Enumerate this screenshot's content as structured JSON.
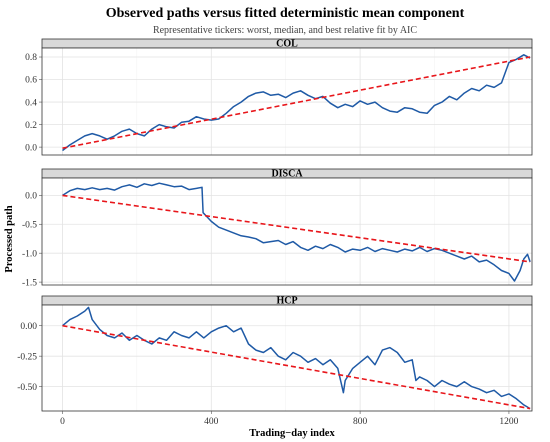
{
  "chart_data": {
    "type": "line",
    "title": "Observed paths versus fitted deterministic mean component",
    "subtitle": "Representative tickers: worst, median, and best relative fit by AIC",
    "xlabel": "Trading−day index",
    "ylabel": "Processed path",
    "xlim": [
      -55,
      1262
    ],
    "x_ticks": [
      0,
      400,
      800,
      1200
    ],
    "grid": true,
    "legend": "none",
    "colors": {
      "observed": "#1f5aa6",
      "fitted": "#e8161b"
    },
    "panels": [
      {
        "strip": "COL",
        "ylim": [
          -0.07,
          0.88
        ],
        "y_ticks": [
          0.0,
          0.2,
          0.4,
          0.6,
          0.8
        ],
        "y_tick_labels": [
          "0.0",
          "0.2",
          "0.4",
          "0.6",
          "0.8"
        ],
        "fitted": {
          "x": [
            0,
            1257
          ],
          "y": [
            -0.01,
            0.8
          ]
        },
        "observed": {
          "x": [
            0,
            20,
            40,
            60,
            80,
            100,
            120,
            140,
            160,
            180,
            200,
            220,
            240,
            260,
            280,
            300,
            320,
            340,
            360,
            380,
            400,
            420,
            440,
            460,
            480,
            500,
            520,
            540,
            560,
            580,
            600,
            620,
            640,
            660,
            680,
            700,
            720,
            740,
            760,
            780,
            800,
            820,
            840,
            860,
            880,
            900,
            920,
            940,
            960,
            980,
            1000,
            1020,
            1040,
            1060,
            1080,
            1100,
            1120,
            1140,
            1160,
            1180,
            1200,
            1220,
            1240,
            1257
          ],
          "y": [
            -0.03,
            0.02,
            0.06,
            0.1,
            0.12,
            0.1,
            0.07,
            0.1,
            0.14,
            0.16,
            0.12,
            0.1,
            0.16,
            0.2,
            0.18,
            0.17,
            0.22,
            0.23,
            0.27,
            0.25,
            0.24,
            0.25,
            0.3,
            0.36,
            0.4,
            0.45,
            0.48,
            0.49,
            0.46,
            0.47,
            0.44,
            0.48,
            0.5,
            0.46,
            0.43,
            0.45,
            0.39,
            0.35,
            0.38,
            0.36,
            0.41,
            0.38,
            0.4,
            0.35,
            0.32,
            0.31,
            0.35,
            0.34,
            0.31,
            0.3,
            0.37,
            0.4,
            0.45,
            0.42,
            0.48,
            0.52,
            0.5,
            0.55,
            0.53,
            0.57,
            0.75,
            0.78,
            0.82,
            0.79
          ]
        }
      },
      {
        "strip": "DISCA",
        "ylim": [
          -1.55,
          0.3
        ],
        "y_ticks": [
          0.0,
          -0.5,
          -1.0,
          -1.5
        ],
        "y_tick_labels": [
          "0.0",
          "-0.5",
          "-1.0",
          "-1.5"
        ],
        "fitted": {
          "x": [
            0,
            1257
          ],
          "y": [
            0.0,
            -1.15
          ]
        },
        "observed": {
          "x": [
            0,
            20,
            40,
            60,
            80,
            100,
            120,
            140,
            160,
            180,
            200,
            220,
            240,
            260,
            280,
            300,
            320,
            340,
            360,
            375,
            378,
            400,
            420,
            440,
            460,
            480,
            500,
            520,
            540,
            560,
            580,
            600,
            620,
            640,
            660,
            680,
            700,
            720,
            740,
            760,
            780,
            800,
            820,
            840,
            860,
            880,
            900,
            920,
            940,
            960,
            980,
            1000,
            1020,
            1040,
            1060,
            1080,
            1100,
            1120,
            1140,
            1160,
            1180,
            1200,
            1215,
            1230,
            1240,
            1250,
            1257
          ],
          "y": [
            0.0,
            0.08,
            0.12,
            0.1,
            0.13,
            0.1,
            0.12,
            0.09,
            0.15,
            0.18,
            0.14,
            0.2,
            0.17,
            0.21,
            0.18,
            0.15,
            0.16,
            0.1,
            0.12,
            0.14,
            -0.3,
            -0.45,
            -0.55,
            -0.6,
            -0.65,
            -0.7,
            -0.72,
            -0.75,
            -0.82,
            -0.8,
            -0.78,
            -0.85,
            -0.8,
            -0.9,
            -0.95,
            -0.88,
            -0.92,
            -0.85,
            -0.9,
            -0.98,
            -0.93,
            -0.95,
            -0.9,
            -0.97,
            -0.92,
            -0.95,
            -0.98,
            -0.93,
            -0.96,
            -0.9,
            -0.97,
            -0.92,
            -0.95,
            -1.0,
            -1.05,
            -1.1,
            -1.05,
            -1.15,
            -1.12,
            -1.2,
            -1.3,
            -1.35,
            -1.48,
            -1.3,
            -1.1,
            -1.02,
            -1.15
          ]
        }
      },
      {
        "strip": "HCP",
        "ylim": [
          -0.7,
          0.17
        ],
        "y_ticks": [
          0.0,
          -0.25,
          -0.5
        ],
        "y_tick_labels": [
          "0.00",
          "-0.25",
          "-0.50"
        ],
        "fitted": {
          "x": [
            0,
            1257
          ],
          "y": [
            0.0,
            -0.68
          ]
        },
        "observed": {
          "x": [
            0,
            20,
            40,
            50,
            60,
            70,
            80,
            100,
            120,
            140,
            160,
            180,
            200,
            220,
            240,
            260,
            280,
            300,
            320,
            340,
            360,
            380,
            400,
            420,
            440,
            460,
            480,
            500,
            520,
            540,
            560,
            580,
            600,
            620,
            640,
            660,
            680,
            700,
            720,
            740,
            755,
            760,
            780,
            800,
            820,
            840,
            860,
            880,
            900,
            920,
            940,
            950,
            960,
            980,
            1000,
            1020,
            1040,
            1060,
            1080,
            1100,
            1120,
            1140,
            1160,
            1180,
            1200,
            1220,
            1240,
            1257
          ],
          "y": [
            0.0,
            0.05,
            0.08,
            0.1,
            0.12,
            0.15,
            0.05,
            -0.03,
            -0.08,
            -0.1,
            -0.06,
            -0.12,
            -0.08,
            -0.12,
            -0.15,
            -0.1,
            -0.12,
            -0.05,
            -0.08,
            -0.1,
            -0.05,
            -0.1,
            -0.05,
            -0.02,
            0.0,
            -0.05,
            -0.02,
            -0.15,
            -0.2,
            -0.22,
            -0.18,
            -0.25,
            -0.28,
            -0.22,
            -0.25,
            -0.3,
            -0.27,
            -0.32,
            -0.28,
            -0.35,
            -0.55,
            -0.45,
            -0.35,
            -0.3,
            -0.25,
            -0.32,
            -0.2,
            -0.18,
            -0.22,
            -0.3,
            -0.28,
            -0.45,
            -0.42,
            -0.45,
            -0.5,
            -0.45,
            -0.48,
            -0.5,
            -0.46,
            -0.5,
            -0.52,
            -0.55,
            -0.53,
            -0.58,
            -0.56,
            -0.6,
            -0.65,
            -0.68
          ]
        }
      }
    ]
  }
}
